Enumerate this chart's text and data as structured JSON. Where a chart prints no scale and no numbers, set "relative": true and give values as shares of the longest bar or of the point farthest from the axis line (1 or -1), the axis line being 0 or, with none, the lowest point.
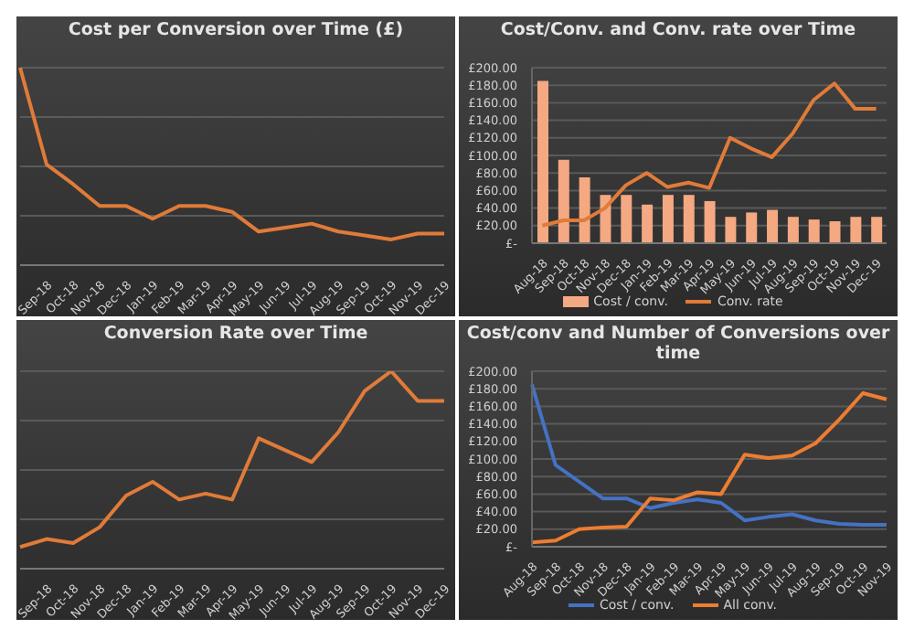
{
  "chart_data": [
    {
      "type": "line",
      "title": "Cost per Conversion over Time (£)",
      "relative": true,
      "grid": "y",
      "categories": [
        null,
        "Sep-18",
        "Oct-18",
        "Nov-18",
        "Dec-18",
        "Jan-19",
        "Feb-19",
        "Mar-19",
        "Apr-19",
        "May-19",
        "Jun-19",
        "Jul-19",
        "Aug-19",
        "Sep-19",
        "Oct-19",
        "Nov-19",
        "Dec-19"
      ],
      "series": [
        {
          "color": "#e07b39",
          "values": [
            1.0,
            0.51,
            0.41,
            0.3,
            0.3,
            0.235,
            0.3,
            0.3,
            0.27,
            0.17,
            0.19,
            0.21,
            0.17,
            0.15,
            0.13,
            0.16,
            0.16
          ]
        }
      ]
    },
    {
      "type": "bar",
      "title": "Cost/Conv. and Conv. rate over Time",
      "grid": "y",
      "legend": "bottom",
      "ylim": [
        0,
        200
      ],
      "yticks": [
        {
          "value": 0,
          "label": "£-"
        },
        {
          "value": 20,
          "label": "£20.00"
        },
        {
          "value": 40,
          "label": "£40.00"
        },
        {
          "value": 60,
          "label": "£60.00"
        },
        {
          "value": 80,
          "label": "£80.00"
        },
        {
          "value": 100,
          "label": "£100.00"
        },
        {
          "value": 120,
          "label": "£120.00"
        },
        {
          "value": 140,
          "label": "£140.00"
        },
        {
          "value": 160,
          "label": "£160.00"
        },
        {
          "value": 180,
          "label": "£180.00"
        },
        {
          "value": 200,
          "label": "£200.00"
        }
      ],
      "categories": [
        "Aug-18",
        "Sep-18",
        "Oct-18",
        "Nov-18",
        "Dec-18",
        "Jan-19",
        "Feb-19",
        "Mar-19",
        "Apr-19",
        "May-19",
        "Jun-19",
        "Jul-19",
        "Aug-19",
        "Sep-19",
        "Oct-19",
        "Nov-19",
        "Dec-19"
      ],
      "series": [
        {
          "name": "Cost / conv.",
          "color": "#f4a982",
          "values": [
            185,
            95,
            75,
            55,
            55,
            44,
            55,
            55,
            48,
            30,
            35,
            38,
            30,
            27,
            25,
            30,
            30
          ]
        },
        {
          "name": "Conv. rate",
          "type": "line",
          "color": "#e07b39",
          "values": [
            20,
            26,
            26,
            40,
            66,
            80,
            64,
            69,
            63,
            120,
            108,
            98,
            125,
            163,
            182,
            153,
            153
          ]
        }
      ]
    },
    {
      "type": "line",
      "title": "Conversion Rate over Time",
      "relative": true,
      "grid": "y",
      "categories": [
        null,
        "Sep-18",
        "Oct-18",
        "Nov-18",
        "Dec-18",
        "Jan-19",
        "Feb-19",
        "Mar-19",
        "Apr-19",
        "May-19",
        "Jun-19",
        "Jul-19",
        "Aug-19",
        "Sep-19",
        "Oct-19",
        "Nov-19",
        "Dec-19"
      ],
      "series": [
        {
          "color": "#e07b39",
          "values": [
            0.11,
            0.15,
            0.13,
            0.21,
            0.37,
            0.44,
            0.35,
            0.38,
            0.35,
            0.66,
            0.6,
            0.54,
            0.69,
            0.9,
            1.0,
            0.85,
            0.85
          ]
        }
      ]
    },
    {
      "type": "line",
      "title": "Cost/conv and Number of Conversions over time",
      "grid": "y",
      "legend": "bottom",
      "ylim": [
        0,
        200
      ],
      "yticks": [
        {
          "value": 0,
          "label": "£-"
        },
        {
          "value": 20,
          "label": "£20.00"
        },
        {
          "value": 40,
          "label": "£40.00"
        },
        {
          "value": 60,
          "label": "£60.00"
        },
        {
          "value": 80,
          "label": "£80.00"
        },
        {
          "value": 100,
          "label": "£100.00"
        },
        {
          "value": 120,
          "label": "£120.00"
        },
        {
          "value": 140,
          "label": "£140.00"
        },
        {
          "value": 160,
          "label": "£160.00"
        },
        {
          "value": 180,
          "label": "£180.00"
        },
        {
          "value": 200,
          "label": "£200.00"
        }
      ],
      "categories": [
        "Aug-18",
        "Sep-18",
        "Oct-18",
        "Nov-18",
        "Dec-18",
        "Jan-19",
        "Feb-19",
        "Mar-19",
        "Apr-19",
        "May-19",
        "Jun-19",
        "Jul-19",
        "Aug-19",
        "Sep-19",
        "Oct-19",
        "Nov-19"
      ],
      "series": [
        {
          "name": "Cost / conv.",
          "color": "#4472c4",
          "values": [
            185,
            93,
            74,
            55,
            55,
            44,
            50,
            54,
            50,
            30,
            34,
            37,
            30,
            26,
            25,
            25
          ]
        },
        {
          "name": "All conv.",
          "color": "#ed7d31",
          "values": [
            5,
            7,
            20,
            22,
            23,
            55,
            53,
            62,
            60,
            105,
            101,
            104,
            118,
            145,
            175,
            168
          ]
        }
      ]
    }
  ]
}
